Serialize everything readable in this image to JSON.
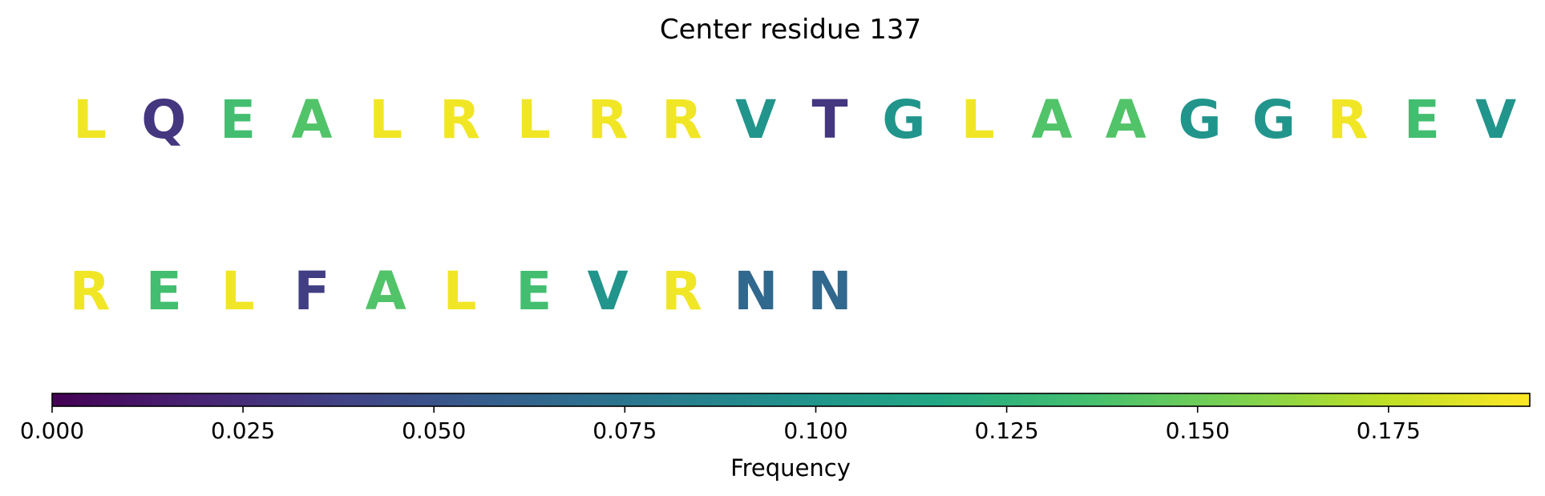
{
  "chart_data": {
    "type": "sequence-logo",
    "title": "Center residue 137",
    "rows": [
      {
        "residues": [
          {
            "letter": "L",
            "frequency": 0.19
          },
          {
            "letter": "Q",
            "frequency": 0.03
          },
          {
            "letter": "E",
            "frequency": 0.135
          },
          {
            "letter": "A",
            "frequency": 0.14
          },
          {
            "letter": "L",
            "frequency": 0.19
          },
          {
            "letter": "R",
            "frequency": 0.19
          },
          {
            "letter": "L",
            "frequency": 0.19
          },
          {
            "letter": "R",
            "frequency": 0.19
          },
          {
            "letter": "R",
            "frequency": 0.19
          },
          {
            "letter": "V",
            "frequency": 0.1
          },
          {
            "letter": "T",
            "frequency": 0.03
          },
          {
            "letter": "G",
            "frequency": 0.1
          },
          {
            "letter": "L",
            "frequency": 0.19
          },
          {
            "letter": "A",
            "frequency": 0.14
          },
          {
            "letter": "A",
            "frequency": 0.14
          },
          {
            "letter": "G",
            "frequency": 0.1
          },
          {
            "letter": "G",
            "frequency": 0.1
          },
          {
            "letter": "R",
            "frequency": 0.19
          },
          {
            "letter": "E",
            "frequency": 0.135
          },
          {
            "letter": "V",
            "frequency": 0.1
          }
        ]
      },
      {
        "residues": [
          {
            "letter": "R",
            "frequency": 0.19
          },
          {
            "letter": "E",
            "frequency": 0.135
          },
          {
            "letter": "L",
            "frequency": 0.19
          },
          {
            "letter": "F",
            "frequency": 0.035
          },
          {
            "letter": "A",
            "frequency": 0.14
          },
          {
            "letter": "L",
            "frequency": 0.19
          },
          {
            "letter": "E",
            "frequency": 0.135
          },
          {
            "letter": "V",
            "frequency": 0.1
          },
          {
            "letter": "R",
            "frequency": 0.19
          },
          {
            "letter": "N",
            "frequency": 0.065
          },
          {
            "letter": "N",
            "frequency": 0.065
          }
        ]
      }
    ],
    "colorbar": {
      "colormap": "viridis",
      "range": [
        0,
        0.1935
      ],
      "ticks": [
        "0.000",
        "0.025",
        "0.050",
        "0.075",
        "0.100",
        "0.125",
        "0.150",
        "0.175"
      ],
      "label": "Frequency",
      "orientation": "horizontal",
      "placement": "bottom"
    }
  }
}
